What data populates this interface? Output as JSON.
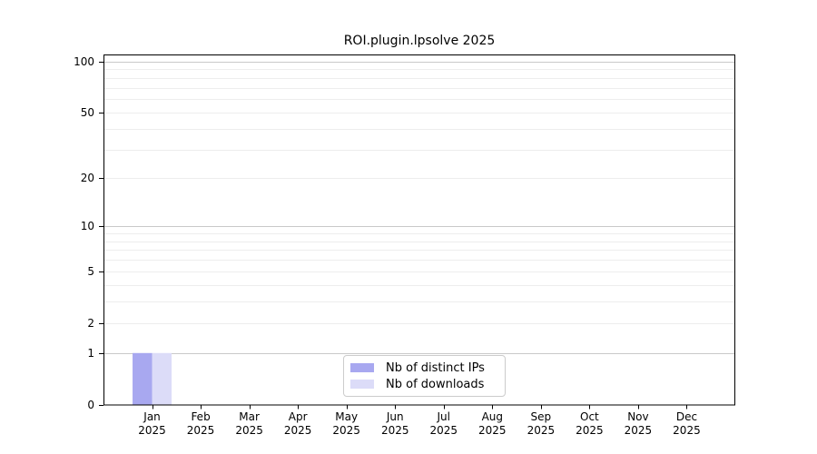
{
  "chart_data": {
    "type": "bar",
    "title": "ROI.plugin.lpsolve 2025",
    "x_categories": [
      "Jan",
      "Feb",
      "Mar",
      "Apr",
      "May",
      "Jun",
      "Jul",
      "Aug",
      "Sep",
      "Oct",
      "Nov",
      "Dec"
    ],
    "x_year": "2025",
    "series": [
      {
        "name": "Nb of distinct IPs",
        "color": "#a8a8f0",
        "values": [
          1,
          0,
          0,
          0,
          0,
          0,
          0,
          0,
          0,
          0,
          0,
          0
        ]
      },
      {
        "name": "Nb of downloads",
        "color": "#dcdcf8",
        "values": [
          1,
          0,
          0,
          0,
          0,
          0,
          0,
          0,
          0,
          0,
          0,
          0
        ]
      }
    ],
    "y_scale": "log1p",
    "ylim": [
      0,
      110.3
    ],
    "y_tick_labels": [
      0,
      1,
      2,
      5,
      10,
      20,
      50,
      100
    ],
    "grid": {
      "major": [
        1,
        10,
        100
      ],
      "minor": [
        2,
        3,
        4,
        5,
        6,
        7,
        8,
        9,
        20,
        30,
        40,
        50,
        60,
        70,
        80,
        90
      ]
    },
    "legend_position": "lower center"
  },
  "colors": {
    "grid_major": "#c9c9c9",
    "grid_minor": "#ededed",
    "axis": "#000000",
    "legend_border": "#cccccc",
    "background": "#ffffff"
  }
}
